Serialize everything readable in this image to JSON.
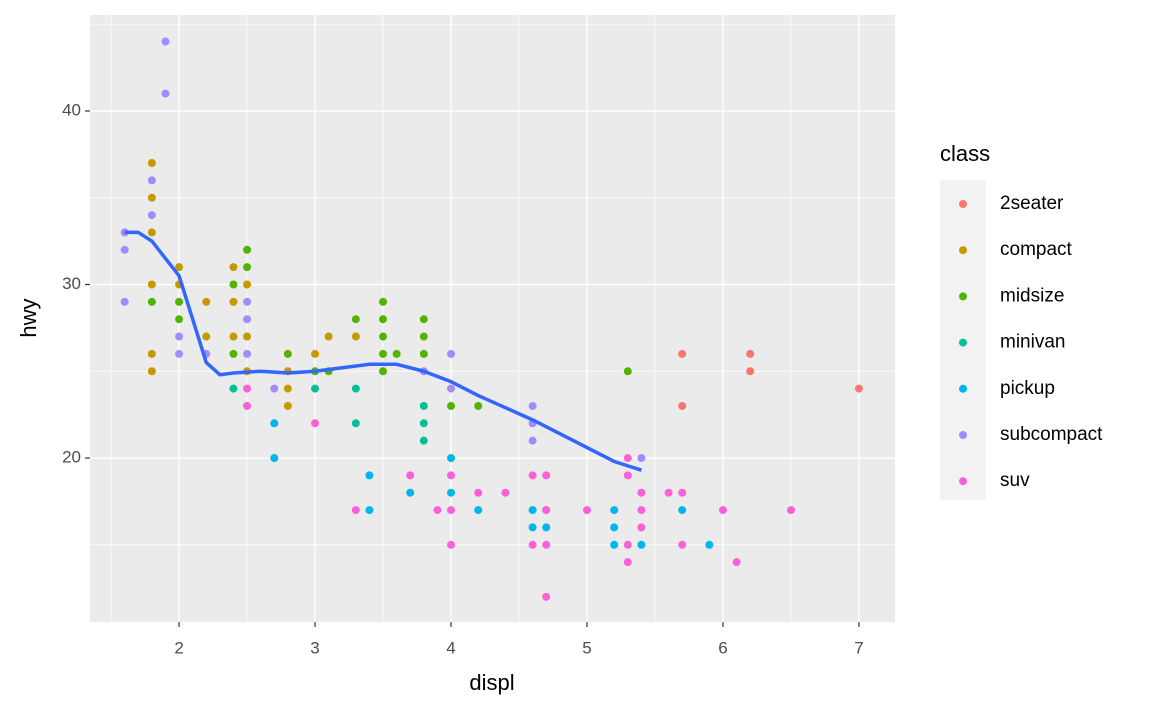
{
  "chart_data": {
    "type": "scatter",
    "x_label": "displ",
    "y_label": "hwy",
    "legend_title": "class",
    "xlim": [
      1.345,
      7.265
    ],
    "ylim": [
      10.55,
      45.53
    ],
    "xticks": [
      2,
      3,
      4,
      5,
      6,
      7
    ],
    "yticks": [
      20,
      30,
      40
    ],
    "minor_xticks": [
      1.5,
      2.5,
      3.5,
      4.5,
      5.5,
      6.5
    ],
    "minor_yticks": [
      15,
      25,
      35,
      45
    ],
    "grid": true,
    "series": [
      {
        "name": "2seater",
        "color": "#F8766D",
        "x": [
          5.7,
          5.7,
          6.2,
          6.2,
          7.0
        ],
        "values": [
          26,
          23,
          26,
          25,
          24
        ]
      },
      {
        "name": "compact",
        "color": "#C49A00",
        "x": [
          1.8,
          1.8,
          1.8,
          1.8,
          1.8,
          1.8,
          2.0,
          2.0,
          2.2,
          2.2,
          2.4,
          2.4,
          2.4,
          2.5,
          2.5,
          2.5,
          2.8,
          2.8,
          2.8,
          3.0,
          3.1,
          3.3
        ],
        "values": [
          37,
          35,
          33,
          30,
          26,
          25,
          31,
          30,
          29,
          27,
          31,
          29,
          27,
          30,
          27,
          25,
          25,
          24,
          23,
          26,
          27,
          27
        ]
      },
      {
        "name": "midsize",
        "color": "#53B400",
        "x": [
          1.8,
          2.0,
          2.0,
          2.4,
          2.4,
          2.5,
          2.5,
          2.8,
          3.0,
          3.1,
          3.3,
          3.5,
          3.5,
          3.5,
          3.5,
          3.5,
          3.6,
          3.8,
          3.8,
          3.8,
          4.0,
          4.2,
          5.3
        ],
        "values": [
          29,
          29,
          28,
          30,
          26,
          32,
          31,
          26,
          25,
          25,
          28,
          29,
          28,
          27,
          26,
          25,
          26,
          28,
          27,
          26,
          23,
          23,
          25
        ]
      },
      {
        "name": "minivan",
        "color": "#00C094",
        "x": [
          2.4,
          3.0,
          3.3,
          3.3,
          3.8,
          3.8,
          3.8
        ],
        "values": [
          24,
          24,
          24,
          22,
          23,
          22,
          21
        ]
      },
      {
        "name": "pickup",
        "color": "#00B6EB",
        "x": [
          2.7,
          2.7,
          3.4,
          3.4,
          3.7,
          4.0,
          4.0,
          4.2,
          4.6,
          4.6,
          4.7,
          4.7,
          5.2,
          5.2,
          5.2,
          5.4,
          5.7,
          5.9
        ],
        "values": [
          22,
          20,
          19,
          17,
          18,
          20,
          18,
          17,
          17,
          16,
          17,
          16,
          17,
          16,
          15,
          15,
          17,
          15
        ]
      },
      {
        "name": "subcompact",
        "color": "#A58AFF",
        "x": [
          1.6,
          1.6,
          1.6,
          1.8,
          1.8,
          1.9,
          1.9,
          2.0,
          2.0,
          2.2,
          2.5,
          2.5,
          2.5,
          2.7,
          3.8,
          4.0,
          4.0,
          4.6,
          4.6,
          4.6,
          5.4
        ],
        "values": [
          33,
          32,
          29,
          36,
          34,
          44,
          41,
          27,
          26,
          26,
          29,
          28,
          26,
          24,
          25,
          26,
          24,
          23,
          22,
          21,
          20
        ]
      },
      {
        "name": "suv",
        "color": "#FB61D7",
        "x": [
          2.5,
          2.5,
          3.0,
          3.3,
          3.7,
          3.9,
          4.0,
          4.0,
          4.0,
          4.2,
          4.4,
          4.6,
          4.6,
          4.7,
          4.7,
          4.7,
          4.7,
          5.0,
          5.3,
          5.3,
          5.3,
          5.3,
          5.4,
          5.4,
          5.4,
          5.6,
          5.7,
          5.7,
          6.0,
          6.1,
          6.5
        ],
        "values": [
          24,
          23,
          22,
          17,
          19,
          17,
          19,
          17,
          15,
          18,
          18,
          19,
          15,
          19,
          17,
          15,
          12,
          17,
          20,
          19,
          15,
          14,
          18,
          17,
          16,
          18,
          18,
          15,
          17,
          14,
          17
        ]
      }
    ],
    "smooth": {
      "color": "#3366FF",
      "x": [
        1.6,
        1.7,
        1.8,
        1.9,
        2.0,
        2.1,
        2.2,
        2.3,
        2.4,
        2.6,
        2.8,
        3.0,
        3.2,
        3.4,
        3.6,
        3.8,
        4.0,
        4.2,
        4.4,
        4.6,
        4.8,
        5.0,
        5.2,
        5.4
      ],
      "values": [
        33,
        33,
        32.5,
        31.5,
        30.5,
        28,
        25.5,
        24.8,
        24.9,
        25,
        24.9,
        25,
        25.2,
        25.4,
        25.4,
        25,
        24.4,
        23.6,
        22.9,
        22.2,
        21.4,
        20.6,
        19.8,
        19.3
      ]
    }
  }
}
